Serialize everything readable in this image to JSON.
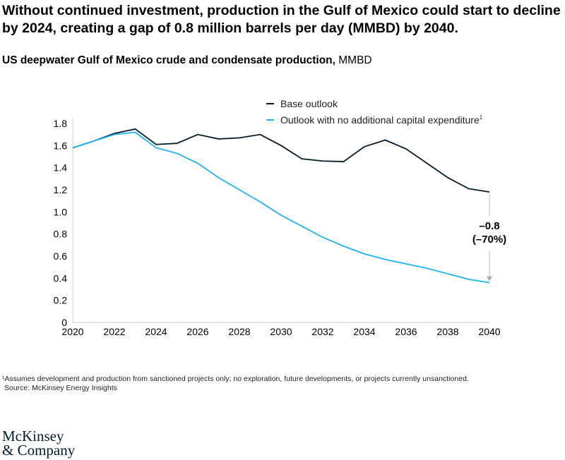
{
  "title": "Without continued investment, production in the Gulf of Mexico could start to decline by 2024, creating a gap of 0.8 million barrels per day (MMBD) by 2040.",
  "subtitle_bold": "US deepwater Gulf of Mexico crude and condensate production,",
  "subtitle_unit": " MMBD",
  "footnote": "¹Assumes development and production from sanctioned projects only; no exploration, future developments, or projects currently unsanctioned.",
  "source": "Source: McKinsey Energy Insights",
  "logo": [
    "McKinsey",
    "& Company"
  ],
  "chart_data": {
    "type": "line",
    "x": [
      2020,
      2021,
      2022,
      2023,
      2024,
      2025,
      2026,
      2027,
      2028,
      2029,
      2030,
      2031,
      2032,
      2033,
      2034,
      2035,
      2036,
      2037,
      2038,
      2039,
      2040
    ],
    "xticks": [
      "2020",
      "2022",
      "2024",
      "2026",
      "2028",
      "2030",
      "2032",
      "2034",
      "2036",
      "2038",
      "2040"
    ],
    "yticks": [
      "0",
      "0.2",
      "0.4",
      "0.6",
      "0.8",
      "1.0",
      "1.2",
      "1.4",
      "1.6",
      "1.8"
    ],
    "ylim": [
      0,
      1.8
    ],
    "xlim": [
      2020,
      2040
    ],
    "grid": false,
    "legend_position": "top-right",
    "series": [
      {
        "name": "Base outlook",
        "color": "#051c2c",
        "values": [
          1.58,
          1.64,
          1.71,
          1.75,
          1.61,
          1.62,
          1.7,
          1.66,
          1.67,
          1.7,
          1.6,
          1.48,
          1.46,
          1.455,
          1.59,
          1.65,
          1.57,
          1.44,
          1.31,
          1.21,
          1.18
        ]
      },
      {
        "name": "Outlook with no additional capital expenditure",
        "name_sup": "1",
        "color": "#1fb1f3",
        "values": [
          1.58,
          1.64,
          1.7,
          1.72,
          1.58,
          1.53,
          1.44,
          1.31,
          1.2,
          1.09,
          0.97,
          0.87,
          0.77,
          0.69,
          0.62,
          0.57,
          0.53,
          0.49,
          0.44,
          0.39,
          0.36
        ]
      }
    ],
    "annotation": {
      "line1": "–0.8",
      "line2": "(–70%)",
      "x": 2040
    }
  }
}
